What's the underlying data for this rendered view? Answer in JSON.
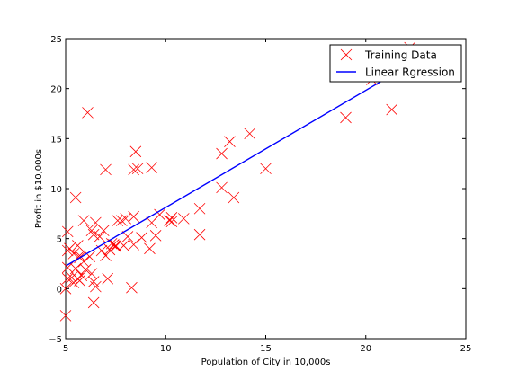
{
  "chart_data": {
    "type": "scatter",
    "xlabel": "Population of City in 10,000s",
    "ylabel": "Profit in $10,000s",
    "xlim": [
      5,
      25
    ],
    "ylim": [
      -5,
      25
    ],
    "xticks": [
      5,
      10,
      15,
      20,
      25
    ],
    "yticks": [
      -5,
      0,
      5,
      10,
      15,
      20,
      25
    ],
    "grid": false,
    "legend_position": "top-right",
    "series": [
      {
        "name": "Training Data",
        "kind": "scatter",
        "marker": "x",
        "color": "#ff0000",
        "points": [
          [
            6.1,
            17.6
          ],
          [
            5.5,
            9.1
          ],
          [
            8.5,
            13.7
          ],
          [
            7.0,
            11.9
          ],
          [
            5.9,
            6.8
          ],
          [
            8.4,
            11.9
          ],
          [
            7.5,
            4.3
          ],
          [
            8.6,
            12.0
          ],
          [
            6.5,
            6.6
          ],
          [
            5.1,
            3.8
          ],
          [
            5.7,
            3.3
          ],
          [
            14.2,
            15.5
          ],
          [
            5.7,
            3.1
          ],
          [
            8.4,
            7.2
          ],
          [
            6.4,
            0.7
          ],
          [
            5.4,
            3.5
          ],
          [
            6.4,
            5.4
          ],
          [
            5.1,
            5.7
          ],
          [
            5.0,
            -2.7
          ],
          [
            5.1,
            2.1
          ],
          [
            5.0,
            0.0
          ],
          [
            5.1,
            1.0
          ],
          [
            5.4,
            0.6
          ],
          [
            5.6,
            1.0
          ],
          [
            5.8,
            1.3
          ],
          [
            5.3,
            1.1
          ],
          [
            5.5,
            2.0
          ],
          [
            5.9,
            2.7
          ],
          [
            6.0,
            1.9
          ],
          [
            6.2,
            3.2
          ],
          [
            6.3,
            1.5
          ],
          [
            6.4,
            -1.4
          ],
          [
            6.7,
            5.2
          ],
          [
            7.0,
            3.3
          ],
          [
            7.2,
            3.9
          ],
          [
            7.3,
            4.5
          ],
          [
            7.5,
            4.2
          ],
          [
            7.6,
            6.8
          ],
          [
            7.8,
            6.8
          ],
          [
            8.1,
            5.2
          ],
          [
            8.3,
            0.1
          ],
          [
            8.4,
            4.4
          ],
          [
            8.8,
            5.1
          ],
          [
            9.2,
            4.0
          ],
          [
            9.3,
            6.6
          ],
          [
            9.5,
            5.3
          ],
          [
            9.3,
            12.1
          ],
          [
            9.7,
            7.4
          ],
          [
            10.2,
            6.8
          ],
          [
            10.3,
            7.1
          ],
          [
            10.3,
            6.7
          ],
          [
            10.9,
            7.0
          ],
          [
            11.7,
            5.4
          ],
          [
            11.7,
            8.0
          ],
          [
            12.8,
            10.1
          ],
          [
            12.8,
            13.5
          ],
          [
            13.2,
            14.7
          ],
          [
            13.4,
            9.1
          ],
          [
            15.0,
            12.0
          ],
          [
            19.0,
            17.1
          ],
          [
            20.3,
            20.9
          ],
          [
            21.3,
            17.9
          ],
          [
            22.2,
            24.1
          ],
          [
            6.8,
            3.8
          ],
          [
            7.9,
            4.3
          ],
          [
            8.0,
            7.0
          ],
          [
            5.6,
            4.3
          ],
          [
            5.2,
            4.0
          ],
          [
            6.3,
            5.8
          ],
          [
            6.5,
            0.2
          ],
          [
            7.1,
            1.0
          ],
          [
            5.7,
            0.8
          ],
          [
            6.9,
            5.8
          ],
          [
            7.4,
            4.4
          ]
        ]
      },
      {
        "name": "Linear Rgression",
        "kind": "line",
        "color": "#0000ff",
        "points": [
          [
            5.03,
            2.3
          ],
          [
            22.2,
            22.4
          ]
        ]
      }
    ]
  }
}
